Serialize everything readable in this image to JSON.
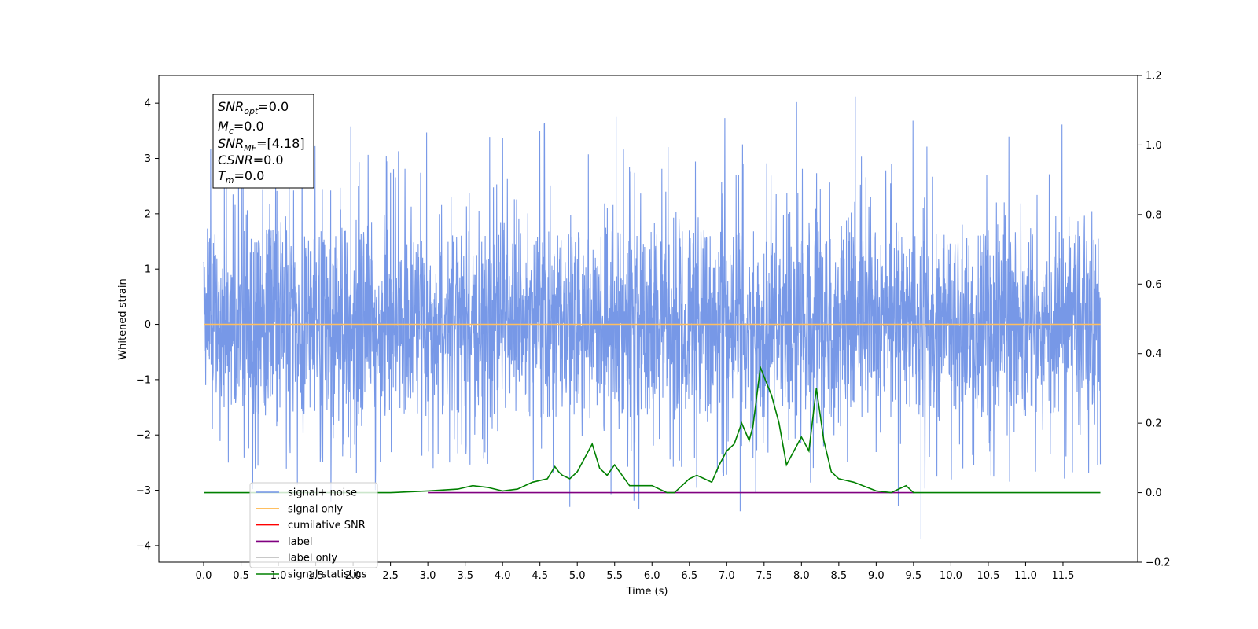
{
  "chart_data": {
    "type": "line",
    "xlabel": "Time (s)",
    "ylabel": "Whitened strain",
    "xlim": [
      -0.6,
      12.5
    ],
    "ylim": [
      -4.3,
      4.5
    ],
    "ylim_right": [
      -0.2,
      1.2
    ],
    "x_ticks": [
      "0.0",
      "0.5",
      "1.0",
      "1.5",
      "2.0",
      "2.5",
      "3.0",
      "3.5",
      "4.0",
      "4.5",
      "5.0",
      "5.5",
      "6.0",
      "6.5",
      "7.0",
      "7.5",
      "8.0",
      "8.5",
      "9.0",
      "9.5",
      "10.0",
      "10.5",
      "11.0",
      "11.5"
    ],
    "y_ticks": [
      "−4",
      "−3",
      "−2",
      "−1",
      "0",
      "1",
      "2",
      "3",
      "4"
    ],
    "y_ticks_values": [
      -4,
      -3,
      -2,
      -1,
      0,
      1,
      2,
      3,
      4
    ],
    "y_right_ticks": [
      "−0.2",
      "0.0",
      "0.2",
      "0.4",
      "0.6",
      "0.8",
      "1.0",
      "1.2"
    ],
    "y_right_ticks_values": [
      -0.2,
      0.0,
      0.2,
      0.4,
      0.6,
      0.8,
      1.0,
      1.2
    ],
    "grid": false,
    "legend_position": "lower-left",
    "series": [
      {
        "name": "signal+ noise",
        "color": "#7092e6",
        "axis": "left",
        "type": "noise",
        "x_range": [
          0.0,
          12.0
        ],
        "typical_range": [
          -1.7,
          1.7
        ],
        "max": 4.12,
        "min": -3.88
      },
      {
        "name": "signal only",
        "color": "#ffbf60",
        "axis": "left",
        "x": [
          0.0,
          12.0
        ],
        "y": [
          0.0,
          0.0
        ]
      },
      {
        "name": "cumilative SNR",
        "color": "#ff0000",
        "axis": "right",
        "x": [],
        "y": []
      },
      {
        "name": "label",
        "color": "#800080",
        "axis": "right",
        "x": [
          3.0,
          9.5
        ],
        "y": [
          0.0,
          0.0
        ]
      },
      {
        "name": "label only",
        "color": "#c8c8c8",
        "axis": "right",
        "x": [],
        "y": []
      },
      {
        "name": "signal statistics",
        "color": "#008000",
        "axis": "right",
        "x": [
          0.0,
          2.5,
          3.0,
          3.4,
          3.6,
          3.8,
          4.0,
          4.2,
          4.4,
          4.6,
          4.7,
          4.75,
          4.8,
          4.9,
          5.0,
          5.1,
          5.2,
          5.3,
          5.4,
          5.5,
          5.7,
          6.0,
          6.2,
          6.3,
          6.5,
          6.6,
          6.7,
          6.8,
          6.9,
          7.0,
          7.1,
          7.2,
          7.3,
          7.35,
          7.45,
          7.6,
          7.7,
          7.8,
          7.9,
          8.0,
          8.1,
          8.2,
          8.3,
          8.4,
          8.5,
          8.6,
          8.7,
          9.0,
          9.2,
          9.3,
          9.4,
          9.5,
          9.7,
          12.0
        ],
        "y": [
          0.0,
          0.0,
          0.005,
          0.01,
          0.02,
          0.015,
          0.005,
          0.01,
          0.03,
          0.04,
          0.075,
          0.06,
          0.05,
          0.04,
          0.06,
          0.1,
          0.14,
          0.07,
          0.05,
          0.08,
          0.02,
          0.02,
          0.0,
          0.0,
          0.04,
          0.05,
          0.04,
          0.03,
          0.08,
          0.12,
          0.14,
          0.2,
          0.15,
          0.19,
          0.36,
          0.28,
          0.2,
          0.08,
          0.12,
          0.16,
          0.12,
          0.3,
          0.15,
          0.06,
          0.04,
          0.035,
          0.03,
          0.005,
          0.0,
          0.01,
          0.02,
          0.0,
          0.0,
          0.0
        ]
      }
    ],
    "annotations": [
      {
        "label": "SNR",
        "sub": "opt",
        "value": "=0.0"
      },
      {
        "label": "M",
        "sub": "c",
        "value": "=0.0"
      },
      {
        "label": "SNR",
        "sub": "MF",
        "value": "=[4.18]"
      },
      {
        "label": "CSNR",
        "sub": "",
        "value": "=0.0"
      },
      {
        "label": "T",
        "sub": "m",
        "value": "=0.0"
      }
    ]
  }
}
